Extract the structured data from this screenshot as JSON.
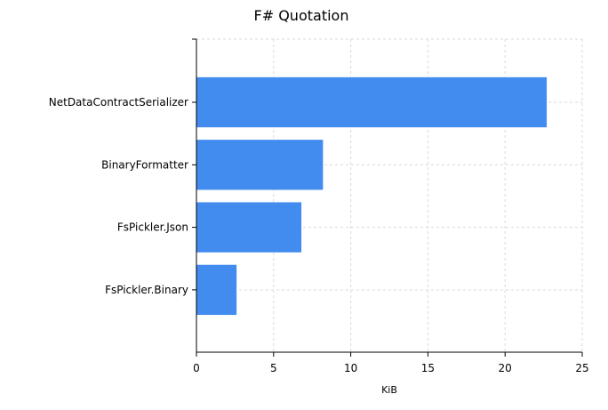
{
  "chart_data": {
    "type": "bar",
    "orientation": "horizontal",
    "title": "F# Quotation",
    "categories": [
      "NetDataContractSerializer",
      "BinaryFormatter",
      "FsPickler.Json",
      "FsPickler.Binary"
    ],
    "values": [
      22.7,
      8.2,
      6.8,
      2.6
    ],
    "xlabel": "KiB",
    "ylabel": "",
    "xlim": [
      0,
      25
    ],
    "xticks": [
      "0",
      "5",
      "10",
      "15",
      "20",
      "25"
    ],
    "grid": true,
    "bar_color": "#428bef"
  }
}
